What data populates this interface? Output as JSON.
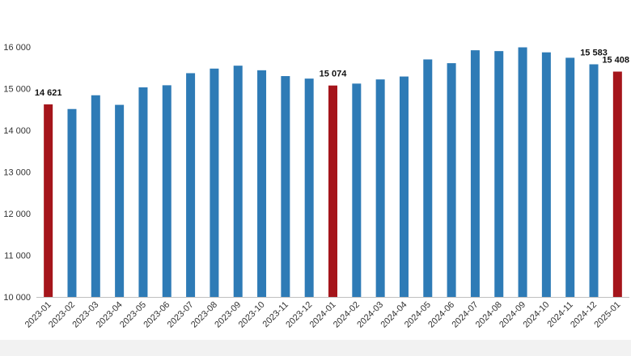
{
  "chart_data": {
    "type": "bar",
    "title": "",
    "xlabel": "",
    "ylabel": "",
    "ylim": [
      10000,
      16000
    ],
    "yticks": [
      10000,
      11000,
      12000,
      13000,
      14000,
      15000,
      16000
    ],
    "ytick_labels": [
      "10 000",
      "11 000",
      "12 000",
      "13 000",
      "14 000",
      "15 000",
      "16 000"
    ],
    "grid": false,
    "legend": "none",
    "categories": [
      "2023-01",
      "2023-02",
      "2023-03",
      "2023-04",
      "2023-05",
      "2023-06",
      "2023-07",
      "2023-08",
      "2023-09",
      "2023-10",
      "2023-11",
      "2023-12",
      "2024-01",
      "2024-02",
      "2024-03",
      "2024-04",
      "2024-05",
      "2024-06",
      "2024-07",
      "2024-08",
      "2024-09",
      "2024-10",
      "2024-11",
      "2024-12",
      "2025-01"
    ],
    "values": [
      14621,
      14510,
      14840,
      14610,
      15030,
      15080,
      15370,
      15480,
      15550,
      15440,
      15300,
      15240,
      15074,
      15120,
      15220,
      15290,
      15700,
      15610,
      15920,
      15900,
      15990,
      15870,
      15740,
      15583,
      15408
    ],
    "highlight_indices": [
      0,
      12,
      24
    ],
    "colors": {
      "default": "#2e7bb6",
      "highlight": "#a5151b"
    },
    "data_labels": [
      {
        "index": 0,
        "text": "14 621"
      },
      {
        "index": 12,
        "text": "15 074"
      },
      {
        "index": 23,
        "text": "15 583"
      },
      {
        "index": 24,
        "text": "15 408"
      }
    ]
  }
}
